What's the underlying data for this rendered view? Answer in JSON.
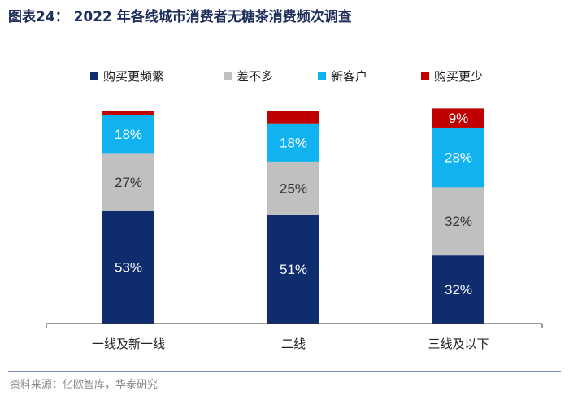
{
  "header": {
    "title": "图表24：  2022 年各线城市消费者无糖茶消费频次调查"
  },
  "source": "资料来源：亿欧智库，华泰研究",
  "chart_data": {
    "type": "bar",
    "stacked": true,
    "categories": [
      "一线及新一线",
      "二线",
      "三线及以下"
    ],
    "series": [
      {
        "name": "购买更频繁",
        "color": "#0f2d6e",
        "values": [
          53,
          51,
          32
        ],
        "labels": [
          "53%",
          "51%",
          "32%"
        ]
      },
      {
        "name": "差不多",
        "color": "#c0c0c0",
        "values": [
          27,
          25,
          32
        ],
        "labels": [
          "27%",
          "25%",
          "32%"
        ]
      },
      {
        "name": "新客户",
        "color": "#10b2f0",
        "values": [
          18,
          18,
          28
        ],
        "labels": [
          "18%",
          "18%",
          "28%"
        ]
      },
      {
        "name": "购买更少",
        "color": "#c00000",
        "values": [
          2,
          6,
          9
        ],
        "labels": [
          "",
          "",
          "9%"
        ]
      }
    ],
    "ylim": [
      0,
      100
    ],
    "legend_position": "top",
    "grid": false
  }
}
